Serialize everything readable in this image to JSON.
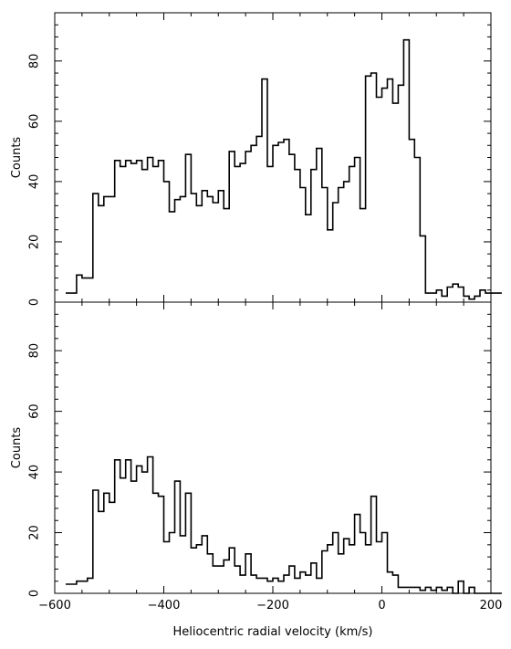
{
  "chart_data": [
    {
      "type": "line",
      "panel": "top",
      "ylabel": "Counts",
      "xlim": [
        -600,
        200
      ],
      "ylim": [
        0,
        96
      ],
      "yticks": [
        0,
        20,
        40,
        60,
        80
      ],
      "xticks": [
        -600,
        -400,
        -200,
        0,
        200
      ],
      "bin_width": 10,
      "step_start": -580,
      "series": [
        {
          "color": "#000000",
          "values": [
            3,
            3,
            9,
            8,
            8,
            36,
            32,
            35,
            35,
            47,
            45,
            47,
            46,
            47,
            44,
            48,
            45,
            47,
            40,
            30,
            34,
            35,
            49,
            36,
            32,
            37,
            35,
            33,
            37,
            31,
            50,
            45,
            46,
            50,
            52,
            55,
            74,
            45,
            52,
            53,
            54,
            49,
            44,
            38,
            29,
            44,
            51,
            38,
            24,
            33,
            38,
            40,
            45,
            48,
            31,
            75,
            76,
            68,
            71,
            74,
            66,
            72,
            87,
            54,
            48,
            22,
            3,
            3,
            4,
            2,
            5,
            6,
            5,
            2,
            1,
            2,
            4,
            3,
            3,
            3
          ]
        },
        {
          "color": "#8c8c8c",
          "values": [
            0,
            0,
            0,
            0,
            0,
            0,
            0,
            0,
            0,
            0,
            0,
            0,
            0,
            0,
            0,
            0,
            0,
            0,
            0,
            0,
            0,
            0,
            0,
            0,
            0,
            0,
            0,
            0,
            0,
            0,
            0,
            0,
            0,
            0,
            0,
            0,
            0,
            0,
            0,
            0,
            0,
            0,
            0,
            0,
            0,
            0,
            0,
            0,
            0,
            0,
            0,
            0,
            0,
            0,
            0,
            0,
            0,
            0,
            0,
            0,
            0,
            0,
            0,
            0,
            0,
            0,
            0,
            0,
            0,
            0,
            0,
            0,
            0,
            0,
            0,
            0,
            0,
            0,
            0,
            0
          ]
        }
      ]
    },
    {
      "type": "line",
      "panel": "bottom",
      "ylabel": "Counts",
      "xlabel": "Heliocentric radial velocity (km/s)",
      "xlim": [
        -600,
        200
      ],
      "ylim": [
        0,
        96
      ],
      "yticks": [
        0,
        20,
        40,
        60,
        80
      ],
      "xticks": [
        -600,
        -400,
        -200,
        0,
        200
      ],
      "bin_width": 10,
      "step_start": -580,
      "series": [
        {
          "color": "#000000",
          "values": [
            3,
            3,
            4,
            4,
            5,
            34,
            27,
            33,
            30,
            44,
            38,
            44,
            37,
            42,
            40,
            45,
            33,
            32,
            17,
            20,
            37,
            19,
            33,
            15,
            16,
            19,
            13,
            9,
            9,
            11,
            15,
            9,
            6,
            13,
            6,
            5,
            5,
            4,
            5,
            4,
            6,
            9,
            5,
            7,
            6,
            10,
            5,
            14,
            16,
            20,
            13,
            18,
            16,
            26,
            20,
            16,
            32,
            17,
            20,
            7,
            6,
            2,
            2,
            2,
            2,
            1,
            2,
            1,
            2,
            1,
            2,
            0,
            4,
            0,
            2,
            0,
            0,
            0,
            0,
            0
          ]
        }
      ]
    }
  ]
}
